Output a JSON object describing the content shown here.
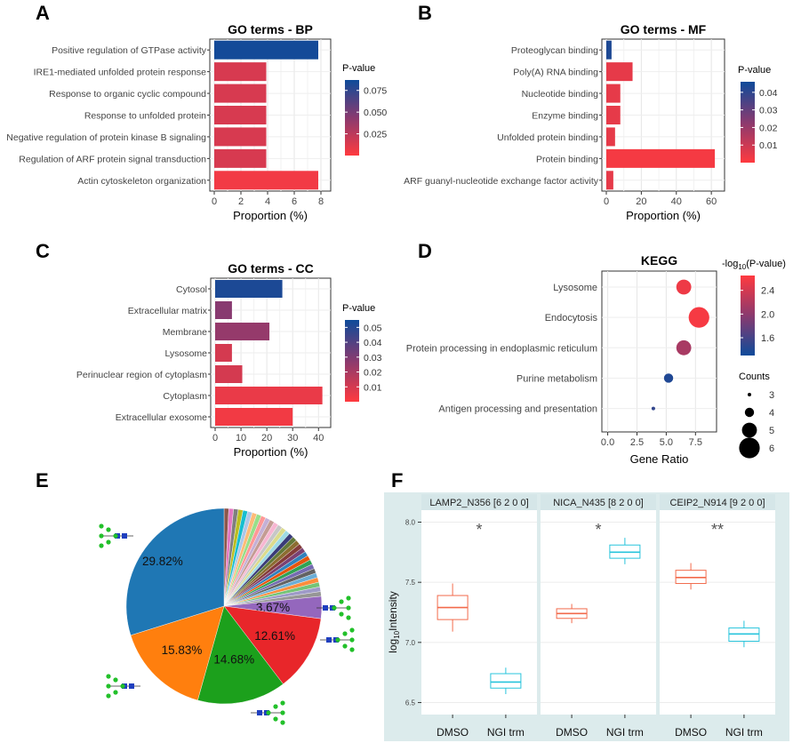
{
  "panels": {
    "A": "A",
    "B": "B",
    "C": "C",
    "D": "D",
    "E": "E",
    "F": "F"
  },
  "legend_labels": {
    "pvalue": "P-value",
    "neglog": "-log",
    "neglog_sub": "10",
    "neglog_tail": "(P-value)",
    "counts": "Counts"
  },
  "colors": {
    "low_p": "#ff3a3f",
    "mid_p": "#8a3a6f",
    "high_p": "#0e4b9a",
    "dmso_box": "#f26a4b",
    "ngi_box": "#28c4dc",
    "facet_strip": "#dcebec",
    "panel_f_bg": "#dcebec"
  },
  "chart_data": [
    {
      "id": "A",
      "type": "bar",
      "orientation": "horizontal",
      "title": "GO terms - BP",
      "xlabel": "Proportion (%)",
      "xlim": [
        0,
        8.4
      ],
      "xticks": [
        0,
        2,
        4,
        6,
        8
      ],
      "categories": [
        "Positive regulation of GTPase activity",
        "IRE1-mediated unfolded protein response",
        "Response to organic cyclic compound",
        "Response to unfolded protein",
        "Negative regulation of protein kinase B signaling",
        "Regulation of ARF protein signal transduction",
        "Actin cytoskeleton organization"
      ],
      "values": [
        7.8,
        3.9,
        3.9,
        3.9,
        3.9,
        3.9,
        7.8
      ],
      "pvalues": [
        0.085,
        0.015,
        0.015,
        0.015,
        0.015,
        0.015,
        0.005
      ],
      "colorbar": {
        "min": 0.0,
        "max": 0.087,
        "ticks": [
          0.025,
          0.05,
          0.075
        ],
        "tick_labels": [
          "0.025",
          "0.050",
          "0.075"
        ]
      }
    },
    {
      "id": "B",
      "type": "bar",
      "orientation": "horizontal",
      "title": "GO terms - MF",
      "xlabel": "Proportion (%)",
      "xlim": [
        0,
        65
      ],
      "xticks": [
        0,
        20,
        40,
        60
      ],
      "categories": [
        "Proteoglycan binding",
        "Poly(A) RNA binding",
        "Nucleotide binding",
        "Enzyme binding",
        "Unfolded protein binding",
        "Protein binding",
        "ARF guanyl-nucleotide exchange factor activity"
      ],
      "values": [
        3,
        15,
        8,
        8,
        5,
        62,
        4
      ],
      "pvalues": [
        0.043,
        0.005,
        0.005,
        0.005,
        0.005,
        0.002,
        0.005
      ],
      "colorbar": {
        "min": 0.0,
        "max": 0.046,
        "ticks": [
          0.01,
          0.02,
          0.03,
          0.04
        ],
        "tick_labels": [
          "0.01",
          "0.02",
          "0.03",
          "0.04"
        ]
      }
    },
    {
      "id": "C",
      "type": "bar",
      "orientation": "horizontal",
      "title": "GO terms - CC",
      "xlabel": "Proportion (%)",
      "xlim": [
        0,
        43
      ],
      "xticks": [
        0,
        10,
        20,
        30,
        40
      ],
      "categories": [
        "Cytosol",
        "Extracellular matrix",
        "Membrane",
        "Lysosome",
        "Perinuclear region of cytoplasm",
        "Cytoplasm",
        "Extracellular exosome"
      ],
      "values": [
        26,
        6.5,
        21,
        6.5,
        10.5,
        41.5,
        30
      ],
      "pvalues": [
        0.052,
        0.028,
        0.025,
        0.01,
        0.01,
        0.005,
        0.003
      ],
      "colorbar": {
        "min": 0.0,
        "max": 0.055,
        "ticks": [
          0.01,
          0.02,
          0.03,
          0.04,
          0.05
        ],
        "tick_labels": [
          "0.01",
          "0.02",
          "0.03",
          "0.04",
          "0.05"
        ]
      }
    },
    {
      "id": "D",
      "type": "scatter",
      "title": "KEGG",
      "xlabel": "Gene Ratio",
      "xlim": [
        -0.5,
        9.3
      ],
      "xticks": [
        0,
        2.5,
        5,
        7.5
      ],
      "xtick_labels": [
        "0.0",
        "2.5",
        "5.0",
        "7.5"
      ],
      "categories": [
        "Lysosome",
        "Endocytosis",
        "Protein processing in endoplasmic reticulum",
        "Purine metabolism",
        "Antigen processing and presentation"
      ],
      "x": [
        6.5,
        7.8,
        6.5,
        5.2,
        3.9
      ],
      "counts": [
        5,
        6,
        5,
        4,
        3
      ],
      "neglog10p": [
        2.55,
        2.6,
        2.15,
        1.4,
        1.5
      ],
      "colorbar": {
        "min": 1.3,
        "max": 2.65,
        "ticks": [
          1.6,
          2.0,
          2.4
        ],
        "tick_labels": [
          "1.6",
          "2.0",
          "2.4"
        ]
      },
      "size_legend": [
        3,
        4,
        5,
        6
      ]
    },
    {
      "id": "E",
      "type": "pie",
      "labels": [
        "29.82%",
        "15.83%",
        "14.68%",
        "12.61%",
        "3.67%"
      ],
      "values": [
        29.82,
        15.83,
        14.68,
        12.61,
        3.67
      ],
      "colors": [
        "#1f77b4",
        "#ff7f0e",
        "#1ca01c",
        "#e8262a",
        "#9467bd"
      ],
      "small_slices_total": 23.39,
      "small_slice_colors": [
        "#8c564b",
        "#e377c2",
        "#7f7f7f",
        "#bcbd22",
        "#17becf",
        "#aec7e8",
        "#ffbb78",
        "#98df8a",
        "#ff9896",
        "#c5b0d5",
        "#c49c94",
        "#f7b6d2",
        "#c7c7c7",
        "#dbdb8d",
        "#9edae5",
        "#393b79",
        "#637939",
        "#8c6d31",
        "#843c39",
        "#7b4173",
        "#3182bd",
        "#e6550d",
        "#31a354",
        "#756bb1",
        "#636363",
        "#6baed6",
        "#fd8d3c",
        "#74c476",
        "#9e9ac8",
        "#969696"
      ]
    },
    {
      "id": "F",
      "type": "box",
      "ylabel": "log",
      "ylabel_sub": "10",
      "ylabel_tail": "Intensity",
      "ylim": [
        6.4,
        8.1
      ],
      "yticks": [
        6.5,
        7.0,
        7.5,
        8.0
      ],
      "ytick_labels": [
        "6.5",
        "7.0",
        "7.5",
        "8.0"
      ],
      "groups": [
        "DMSO",
        "NGI trm"
      ],
      "facets": [
        {
          "title": "LAMP2_N356 [6  2  0  0]",
          "signif": "*",
          "boxes": [
            {
              "min": 7.09,
              "q1": 7.19,
              "median": 7.29,
              "q3": 7.39,
              "max": 7.49
            },
            {
              "min": 6.57,
              "q1": 6.62,
              "median": 6.67,
              "q3": 6.74,
              "max": 6.79
            }
          ]
        },
        {
          "title": "NICA_N435 [8  2  0  0]",
          "signif": "*",
          "boxes": [
            {
              "min": 7.16,
              "q1": 7.2,
              "median": 7.24,
              "q3": 7.28,
              "max": 7.32
            },
            {
              "min": 7.65,
              "q1": 7.7,
              "median": 7.75,
              "q3": 7.81,
              "max": 7.87
            }
          ]
        },
        {
          "title": "CEIP2_N914 [9  2  0  0]",
          "signif": "**",
          "boxes": [
            {
              "min": 7.44,
              "q1": 7.49,
              "median": 7.54,
              "q3": 7.6,
              "max": 7.66
            },
            {
              "min": 6.96,
              "q1": 7.01,
              "median": 7.07,
              "q3": 7.12,
              "max": 7.18
            }
          ]
        }
      ]
    }
  ]
}
